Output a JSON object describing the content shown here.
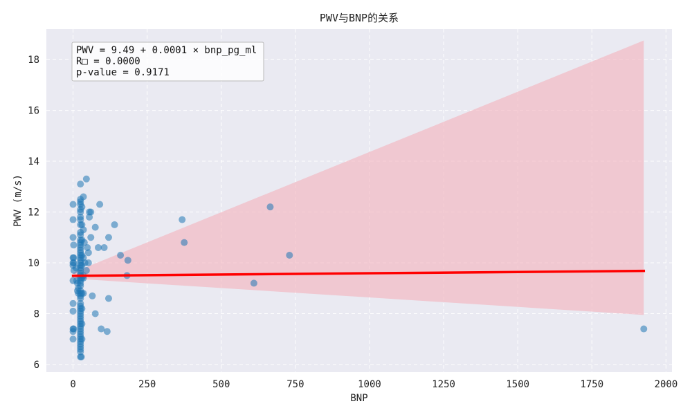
{
  "chart_data": {
    "type": "scatter",
    "title": "PWV与BNP的关系",
    "xlabel": "BNP",
    "ylabel": "PWV (m/s)",
    "xlim": [
      -90,
      2020
    ],
    "ylim": [
      5.7,
      19.2
    ],
    "xticks": [
      0,
      250,
      500,
      750,
      1000,
      1250,
      1500,
      1750,
      2000
    ],
    "yticks": [
      6,
      8,
      10,
      12,
      14,
      16,
      18
    ],
    "grid": true,
    "background": "#eaeaf2",
    "point_color": "#1f77b4",
    "line_color": "#ff0000",
    "band_color": "#f4b0bb",
    "annotation": {
      "line1": "PWV = 9.49 + 0.0001 × bnp_pg_ml",
      "line2": "R□ = 0.0000",
      "line3": "p-value = 0.9171",
      "position": "top-left"
    },
    "regression": {
      "intercept": 9.49,
      "slope": 0.0001,
      "x_range": [
        0,
        1925
      ]
    },
    "confidence_band": {
      "x": [
        0,
        1925
      ],
      "upper": [
        9.62,
        18.75
      ],
      "lower": [
        9.38,
        7.95
      ]
    },
    "points": [
      [
        0,
        12.3
      ],
      [
        0,
        11.7
      ],
      [
        0,
        11.0
      ],
      [
        2,
        10.7
      ],
      [
        0,
        10.2
      ],
      [
        2,
        10.2
      ],
      [
        0,
        10.0
      ],
      [
        2,
        10.0
      ],
      [
        0,
        9.9
      ],
      [
        3,
        9.7
      ],
      [
        0,
        9.3
      ],
      [
        0,
        8.4
      ],
      [
        0,
        8.1
      ],
      [
        0,
        7.4
      ],
      [
        2,
        7.4
      ],
      [
        0,
        7.3
      ],
      [
        0,
        7.0
      ],
      [
        10,
        9.8
      ],
      [
        12,
        9.3
      ],
      [
        15,
        9.2
      ],
      [
        15,
        8.9
      ],
      [
        18,
        8.8
      ],
      [
        18,
        9.0
      ],
      [
        25,
        13.1
      ],
      [
        25,
        12.5
      ],
      [
        25,
        12.4
      ],
      [
        25,
        12.3
      ],
      [
        25,
        12.1
      ],
      [
        25,
        12.0
      ],
      [
        25,
        11.8
      ],
      [
        25,
        11.7
      ],
      [
        25,
        11.5
      ],
      [
        25,
        11.2
      ],
      [
        25,
        11.1
      ],
      [
        25,
        10.9
      ],
      [
        25,
        10.8
      ],
      [
        25,
        10.7
      ],
      [
        25,
        10.6
      ],
      [
        25,
        10.5
      ],
      [
        25,
        10.4
      ],
      [
        25,
        10.3
      ],
      [
        25,
        10.2
      ],
      [
        25,
        10.1
      ],
      [
        25,
        10.0
      ],
      [
        25,
        9.9
      ],
      [
        25,
        9.8
      ],
      [
        25,
        9.7
      ],
      [
        25,
        9.6
      ],
      [
        25,
        9.5
      ],
      [
        25,
        9.4
      ],
      [
        25,
        9.3
      ],
      [
        25,
        9.2
      ],
      [
        25,
        9.1
      ],
      [
        25,
        8.9
      ],
      [
        25,
        8.8
      ],
      [
        25,
        8.7
      ],
      [
        25,
        8.6
      ],
      [
        25,
        8.4
      ],
      [
        25,
        8.3
      ],
      [
        25,
        8.2
      ],
      [
        25,
        8.1
      ],
      [
        25,
        8.0
      ],
      [
        25,
        7.9
      ],
      [
        25,
        7.8
      ],
      [
        25,
        7.7
      ],
      [
        25,
        7.6
      ],
      [
        25,
        7.5
      ],
      [
        25,
        7.4
      ],
      [
        25,
        7.3
      ],
      [
        25,
        7.2
      ],
      [
        25,
        7.1
      ],
      [
        25,
        7.0
      ],
      [
        25,
        6.9
      ],
      [
        25,
        6.8
      ],
      [
        25,
        6.7
      ],
      [
        25,
        6.6
      ],
      [
        25,
        6.5
      ],
      [
        25,
        6.3
      ],
      [
        28,
        6.3
      ],
      [
        30,
        12.2
      ],
      [
        30,
        11.5
      ],
      [
        30,
        10.9
      ],
      [
        30,
        10.3
      ],
      [
        30,
        9.9
      ],
      [
        30,
        9.4
      ],
      [
        30,
        8.8
      ],
      [
        30,
        8.2
      ],
      [
        30,
        7.6
      ],
      [
        30,
        7.0
      ],
      [
        35,
        12.6
      ],
      [
        35,
        11.3
      ],
      [
        35,
        10.2
      ],
      [
        35,
        9.5
      ],
      [
        35,
        9.4
      ],
      [
        35,
        8.8
      ],
      [
        38,
        10.8
      ],
      [
        40,
        10.0
      ],
      [
        45,
        13.3
      ],
      [
        45,
        9.7
      ],
      [
        48,
        10.6
      ],
      [
        52,
        10.4
      ],
      [
        52,
        10.0
      ],
      [
        55,
        11.8
      ],
      [
        55,
        12.0
      ],
      [
        60,
        12.0
      ],
      [
        60,
        11.0
      ],
      [
        65,
        8.7
      ],
      [
        75,
        11.4
      ],
      [
        75,
        8.0
      ],
      [
        85,
        10.6
      ],
      [
        90,
        12.3
      ],
      [
        95,
        7.4
      ],
      [
        105,
        10.6
      ],
      [
        115,
        7.3
      ],
      [
        120,
        8.6
      ],
      [
        120,
        11.0
      ],
      [
        140,
        11.5
      ],
      [
        160,
        10.3
      ],
      [
        182,
        9.5
      ],
      [
        185,
        10.1
      ],
      [
        368,
        11.7
      ],
      [
        375,
        10.8
      ],
      [
        610,
        9.2
      ],
      [
        665,
        12.2
      ],
      [
        730,
        10.3
      ],
      [
        1925,
        7.4
      ]
    ]
  }
}
